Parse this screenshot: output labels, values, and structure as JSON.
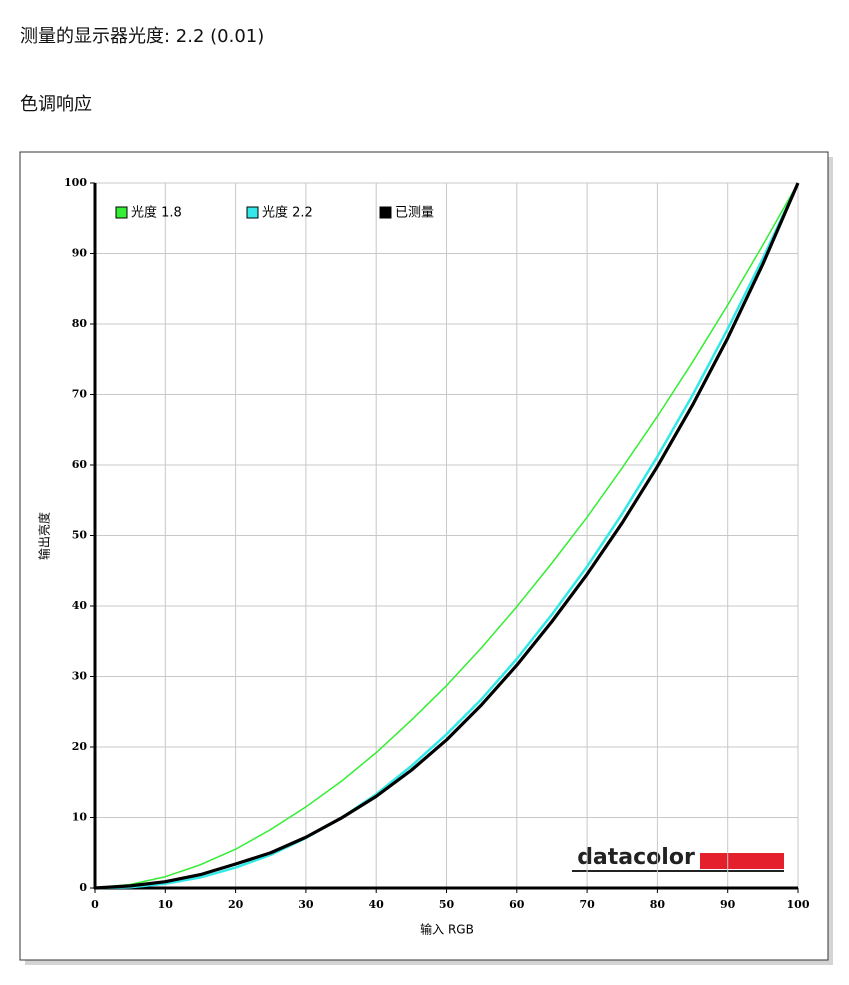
{
  "page_title": "测量的显示器光度: 2.2 (0.01)",
  "section_title": "色调响应",
  "chart_data": {
    "type": "line",
    "xlabel": "输入 RGB",
    "ylabel": "输出亮度",
    "logo": "datacolor",
    "x": [
      0,
      5,
      10,
      15,
      20,
      25,
      30,
      35,
      40,
      45,
      50,
      55,
      60,
      65,
      70,
      75,
      80,
      85,
      90,
      95,
      100
    ],
    "series": [
      {
        "name": "光度 1.8",
        "color": "#33ee33",
        "values": [
          0,
          0.5,
          1.6,
          3.3,
          5.5,
          8.3,
          11.5,
          15.1,
          19.2,
          23.8,
          28.7,
          34.1,
          39.9,
          46.1,
          52.6,
          59.6,
          66.9,
          74.6,
          82.7,
          91.2,
          100
        ]
      },
      {
        "name": "光度 2.2",
        "color": "#33e8e8",
        "values": [
          0,
          0.1,
          0.6,
          1.5,
          2.9,
          4.7,
          7.1,
          9.9,
          13.3,
          17.3,
          21.8,
          26.8,
          32.5,
          38.8,
          45.6,
          53.1,
          61.2,
          69.9,
          79.3,
          89.3,
          100
        ]
      },
      {
        "name": "已测量",
        "color": "#000000",
        "values": [
          0,
          0.3,
          0.9,
          1.9,
          3.4,
          5.0,
          7.2,
          9.9,
          13.0,
          16.7,
          21.0,
          26.0,
          31.6,
          37.8,
          44.5,
          51.8,
          59.8,
          68.5,
          78.0,
          88.5,
          100
        ]
      }
    ],
    "xlim": [
      0,
      100
    ],
    "ylim": [
      0,
      100
    ],
    "xticks": [
      0,
      10,
      20,
      30,
      40,
      50,
      60,
      70,
      80,
      90,
      100
    ],
    "yticks": [
      0,
      10,
      20,
      30,
      40,
      50,
      60,
      70,
      80,
      90,
      100
    ],
    "grid": true,
    "legend": "top-left"
  }
}
